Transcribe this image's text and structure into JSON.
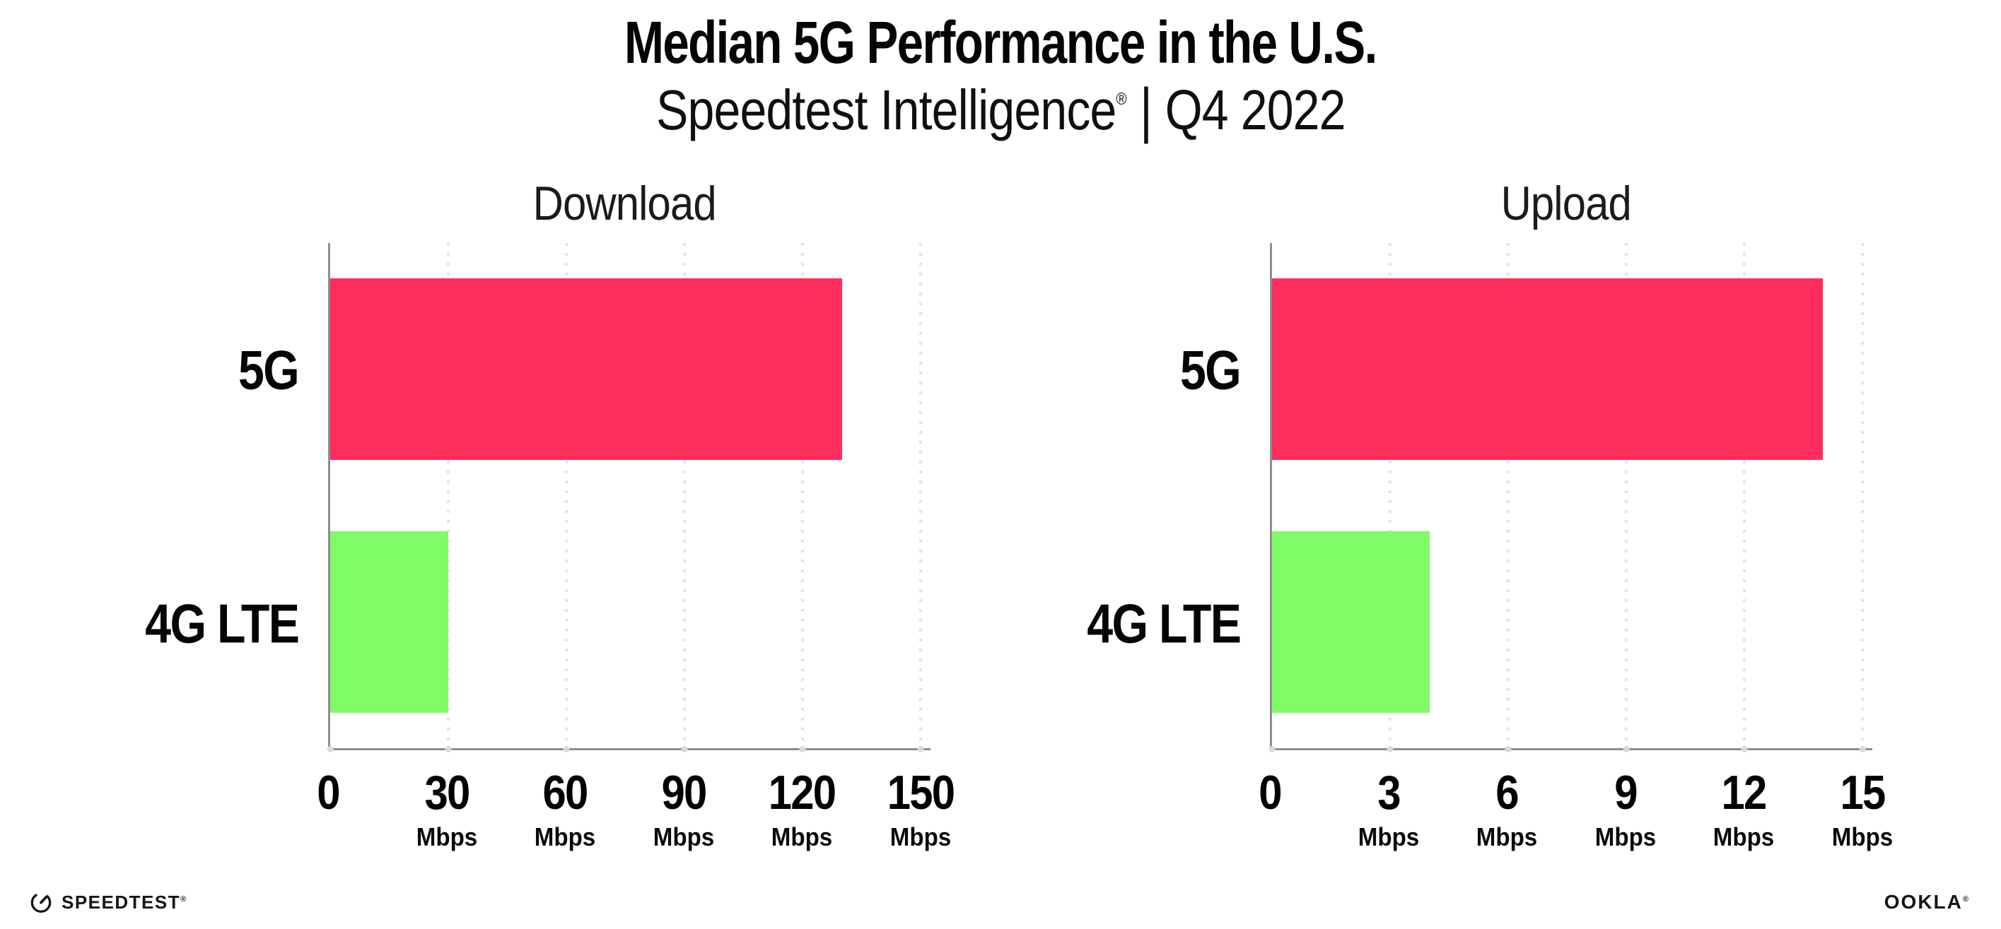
{
  "header": {
    "title": "Median 5G Performance in the U.S.",
    "subtitle": {
      "brand": "Speedtest Intelligence",
      "registered": "®",
      "separator": "|",
      "period": "Q4 2022"
    }
  },
  "charts": [
    {
      "title": "Download",
      "categories": [
        "5G",
        "4G LTE"
      ],
      "ticks": [
        {
          "label": "0",
          "unit": ""
        },
        {
          "label": "30",
          "unit": "Mbps"
        },
        {
          "label": "60",
          "unit": "Mbps"
        },
        {
          "label": "90",
          "unit": "Mbps"
        },
        {
          "label": "120",
          "unit": "Mbps"
        },
        {
          "label": "150",
          "unit": "Mbps"
        }
      ]
    },
    {
      "title": "Upload",
      "categories": [
        "5G",
        "4G LTE"
      ],
      "ticks": [
        {
          "label": "0",
          "unit": ""
        },
        {
          "label": "3",
          "unit": "Mbps"
        },
        {
          "label": "6",
          "unit": "Mbps"
        },
        {
          "label": "9",
          "unit": "Mbps"
        },
        {
          "label": "12",
          "unit": "Mbps"
        },
        {
          "label": "15",
          "unit": "Mbps"
        }
      ]
    }
  ],
  "chart_data": [
    {
      "type": "bar",
      "orientation": "horizontal",
      "title": "Download",
      "categories": [
        "5G",
        "4G LTE"
      ],
      "values": [
        130,
        30
      ],
      "unit": "Mbps",
      "xlim": [
        0,
        150
      ],
      "xticks": [
        0,
        30,
        60,
        90,
        120,
        150
      ],
      "series_colors": [
        "#FF2D5C",
        "#80FC66"
      ],
      "grid": "vertical-dotted",
      "legend": "none"
    },
    {
      "type": "bar",
      "orientation": "horizontal",
      "title": "Upload",
      "categories": [
        "5G",
        "4G LTE"
      ],
      "values": [
        14,
        4
      ],
      "unit": "Mbps",
      "xlim": [
        0,
        15
      ],
      "xticks": [
        0,
        3,
        6,
        9,
        12,
        15
      ],
      "series_colors": [
        "#FF2D5C",
        "#80FC66"
      ],
      "grid": "vertical-dotted",
      "legend": "none"
    }
  ],
  "footer": {
    "speedtest_label": "SPEEDTEST",
    "speedtest_mark": "®",
    "ookla_label": "OOKLA",
    "ookla_mark": "®"
  },
  "colors": {
    "bar_5g": "#FF2D5C",
    "bar_4g_lte": "#80FC66",
    "axis": "#8D8D8D",
    "gridline": "#E2E2EB",
    "text": "#000000"
  }
}
